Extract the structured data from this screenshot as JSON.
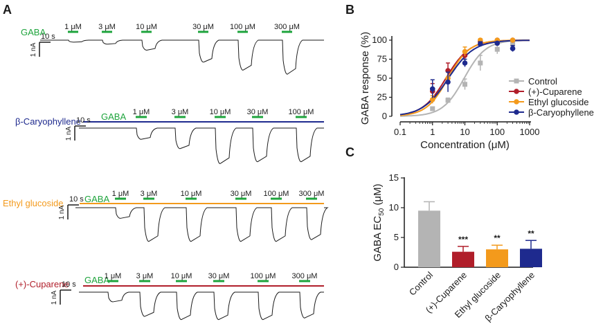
{
  "colors": {
    "gaba_green": "#1ea43c",
    "control": "#b4b4b4",
    "cuparene": "#b01e2a",
    "ethyl": "#f39a1c",
    "caryo": "#1e2a8e",
    "trace": "#1a1a1a"
  },
  "panel_a": {
    "label": "A",
    "gaba_label": "GABA",
    "time_scale": "10 s",
    "current_scale": "1 nA",
    "rows": [
      {
        "drug": "",
        "concentrations": [
          "1 μM",
          "3 μM",
          "10 μM",
          "30 μM",
          "100 μM",
          "300 μM"
        ],
        "amplitudes": [
          0.05,
          0.1,
          0.25,
          0.55,
          0.75,
          0.85
        ]
      },
      {
        "drug": "β-Caryophyllene",
        "concentrations": [
          "1 μM",
          "3 μM",
          "10 μM",
          "30 μM",
          "100 μM"
        ],
        "amplitudes": [
          0.3,
          0.55,
          0.95,
          0.9,
          0.9
        ]
      },
      {
        "drug": "Ethyl glucoside",
        "concentrations": [
          "1 μM",
          "3 μM",
          "10 μM",
          "30 μM",
          "100 μM",
          "300 μM"
        ],
        "amplitudes": [
          0.3,
          0.95,
          0.95,
          0.95,
          0.95,
          0.9
        ]
      },
      {
        "drug": "(+)-Cuparene",
        "concentrations": [
          "1 μM",
          "3 μM",
          "10 μM",
          "30 μM",
          "100 μM",
          "300 μM"
        ],
        "amplitudes": [
          0.3,
          0.75,
          0.85,
          0.85,
          0.85,
          0.8
        ]
      }
    ]
  },
  "chart_data": [
    {
      "panel": "B",
      "type": "line",
      "xscale": "log",
      "xlabel": "Concentration  (μM)",
      "ylabel": "GABA response (%)",
      "xlim": [
        0.1,
        1000
      ],
      "ylim": [
        0,
        100
      ],
      "xticks": [
        "0.1",
        "1",
        "10",
        "100",
        "1000"
      ],
      "yticks": [
        "0",
        "25",
        "50",
        "75",
        "100"
      ],
      "legend_position": "right",
      "series": [
        {
          "name": "Control",
          "ec50": 9.5,
          "hill": 1.3,
          "x": [
            1,
            3,
            10,
            30,
            100,
            300
          ],
          "y": [
            10,
            21,
            42,
            70,
            88,
            95
          ],
          "err": [
            2,
            3,
            7,
            10,
            6,
            3
          ]
        },
        {
          "name": "(+)-Cuparene",
          "ec50": 2.6,
          "hill": 1.2,
          "x": [
            1,
            3,
            10,
            30,
            100,
            300
          ],
          "y": [
            33,
            60,
            80,
            98,
            100,
            100
          ],
          "err": [
            10,
            10,
            6,
            2,
            1,
            1
          ]
        },
        {
          "name": "Ethyl glucoside",
          "ec50": 3.0,
          "hill": 1.3,
          "x": [
            1,
            3,
            10,
            30,
            100,
            300
          ],
          "y": [
            22,
            50,
            85,
            100,
            100,
            100
          ],
          "err": [
            5,
            8,
            6,
            2,
            1,
            1
          ]
        },
        {
          "name": "β-Caryophyllene",
          "ec50": 3.1,
          "hill": 1.1,
          "x": [
            1,
            3,
            10,
            30,
            100,
            300
          ],
          "y": [
            36,
            45,
            70,
            95,
            96,
            89
          ],
          "err": [
            12,
            13,
            5,
            3,
            2,
            4
          ]
        }
      ]
    },
    {
      "panel": "C",
      "type": "bar",
      "ylabel_main": "GABA EC",
      "ylabel_sub": "50",
      "ylabel_unit": " (μM)",
      "ylim": [
        0,
        15
      ],
      "yticks": [
        "0",
        "5",
        "10",
        "15"
      ],
      "categories": [
        "Control",
        "(+)-Cuparene",
        "Ethyl glucoside",
        "β-Caryophyllene"
      ],
      "values": [
        9.5,
        2.6,
        3.0,
        3.1
      ],
      "errors": [
        1.5,
        0.9,
        0.7,
        1.4
      ],
      "significance": [
        "",
        "***",
        "**",
        "**"
      ]
    }
  ],
  "panel_b_label": "B",
  "panel_c_label": "C"
}
